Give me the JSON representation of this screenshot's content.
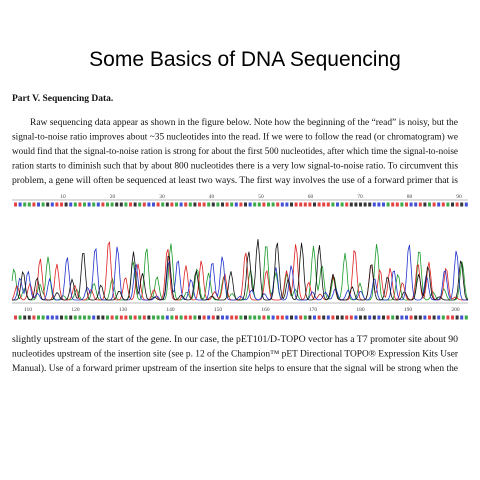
{
  "slide_title": "Some Basics of DNA Sequencing",
  "section_heading": "Part V. Sequencing Data.",
  "paragraph_1": [
    "Raw sequencing data appear as shown in the figure below. Note how the beginning of the “read” is noisy, but the",
    "signal-to-noise ratio improves about ~35 nucleotides into the read. If we were to follow the read (or chromatogram) we",
    "would find that the signal-to-noise ration is strong for about the first 500 nucleotides, after which time the signal-to-noise",
    "ration starts to diminish such that by about 800 nucleotides there is a very low signal-to-noise ratio. To circumvent this",
    "problem, a gene will often be sequenced at least two ways. The first way involves the use of a forward primer that is"
  ],
  "chromatogram": {
    "top_ticks": [
      "10",
      "20",
      "30",
      "40",
      "50",
      "60",
      "70",
      "80",
      "90"
    ],
    "bottom_ticks": [
      "110",
      "120",
      "130",
      "140",
      "150",
      "160",
      "170",
      "180",
      "190",
      "200"
    ]
  },
  "paragraph_2": [
    "slightly upstream of the start of the gene. In our case, the pET101/D-TOPO vector has a T7 promoter site about 90",
    "nucleotides upstream of the insertion site (see p. 12 of the Champion™ pET Directional TOPO® Expression Kits User",
    "Manual). Use of a forward primer upstream of the insertion site helps to ensure that the signal will be strong when the"
  ]
}
